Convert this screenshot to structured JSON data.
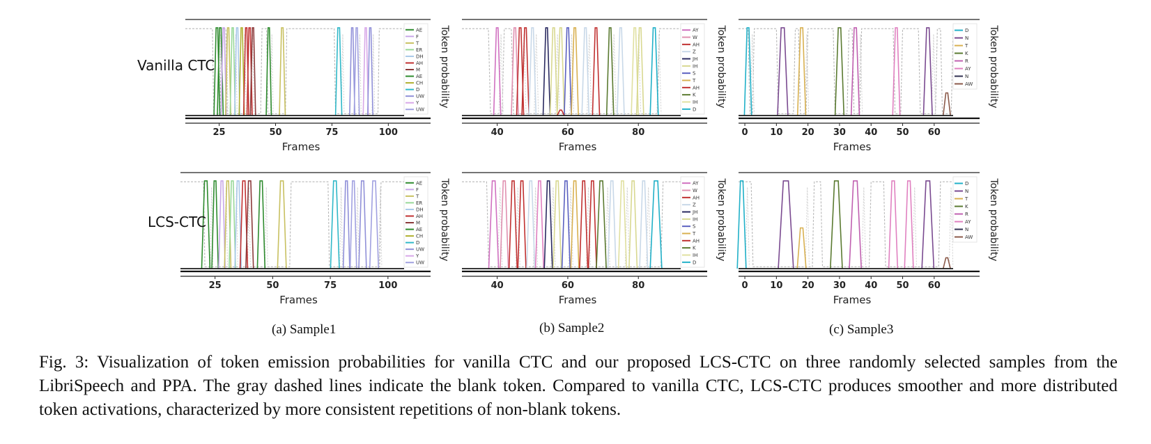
{
  "figure": {
    "row_labels": [
      "Vanilla CTC",
      "LCS-CTC"
    ],
    "subcaptions": [
      "(a) Sample1",
      "(b) Sample2",
      "(c) Sample3"
    ],
    "caption": "Fig. 3: Visualization of token emission probabilities for vanilla CTC and our proposed LCS-CTC on three randomly selected samples from the LibriSpeech and PPA. The gray dashed lines indicate the blank token. Compared to vanilla CTC, LCS-CTC produces smoother and more distributed token activations, characterized by more consistent repetitions of non-blank tokens."
  },
  "chart_data": [
    {
      "type": "line",
      "row": "Vanilla CTC",
      "sample": "Sample1",
      "xlabel": "Frames",
      "ylabel": "Token probability",
      "xlim": [
        10,
        107
      ],
      "ylim": [
        0,
        1
      ],
      "xticks": [
        25,
        50,
        75,
        100
      ],
      "legend_position": "right",
      "legend": [
        {
          "name": "AE",
          "color": "#2e8b2e"
        },
        {
          "name": "F",
          "color": "#c8a8e8"
        },
        {
          "name": "T",
          "color": "#c8c060"
        },
        {
          "name": "ER",
          "color": "#98d898"
        },
        {
          "name": "DH",
          "color": "#a8c8e8"
        },
        {
          "name": "AH",
          "color": "#c03030"
        },
        {
          "name": "M",
          "color": "#8b3a3a"
        },
        {
          "name": "AE",
          "color": "#2e8b2e"
        },
        {
          "name": "CH",
          "color": "#b0b030"
        },
        {
          "name": "D",
          "color": "#30b8c8"
        },
        {
          "name": "UW",
          "color": "#9090d8"
        },
        {
          "name": "Y",
          "color": "#d8a8e8"
        },
        {
          "name": "UW",
          "color": "#a0a0e0"
        }
      ],
      "blank_dips": [
        [
          22,
          26
        ],
        [
          28,
          44
        ],
        [
          46,
          55
        ],
        [
          76,
          96
        ]
      ],
      "peaks": [
        {
          "c": 24,
          "w": 1.8,
          "color": "#2e8b2e"
        },
        {
          "c": 25.5,
          "w": 1.8,
          "color": "#2e8b2e"
        },
        {
          "c": 27,
          "w": 1.5,
          "color": "#c8a8e8"
        },
        {
          "c": 29,
          "w": 1.5,
          "color": "#c8c060"
        },
        {
          "c": 31,
          "w": 1.5,
          "color": "#98d898"
        },
        {
          "c": 33,
          "w": 1.5,
          "color": "#a8c8e8"
        },
        {
          "c": 35,
          "w": 1.5,
          "color": "#b0b030"
        },
        {
          "c": 37,
          "w": 1.5,
          "color": "#c03030"
        },
        {
          "c": 38.5,
          "w": 1.5,
          "color": "#c03030"
        },
        {
          "c": 40,
          "w": 1.5,
          "color": "#8b3a3a"
        },
        {
          "c": 47,
          "w": 1.5,
          "color": "#2e8b2e"
        },
        {
          "c": 53,
          "w": 1.8,
          "color": "#c8c060"
        },
        {
          "c": 78,
          "w": 2,
          "color": "#30b8c8"
        },
        {
          "c": 84,
          "w": 1.5,
          "color": "#9090d8"
        },
        {
          "c": 86,
          "w": 1.5,
          "color": "#a0a0e0"
        },
        {
          "c": 90,
          "w": 1.5,
          "color": "#d8a8e8"
        },
        {
          "c": 92,
          "w": 1.5,
          "color": "#9090d8"
        }
      ]
    },
    {
      "type": "line",
      "row": "Vanilla CTC",
      "sample": "Sample2",
      "xlabel": "Frames",
      "ylabel": "Token probability",
      "xlim": [
        30,
        92
      ],
      "ylim": [
        0,
        1
      ],
      "xticks": [
        40,
        60,
        80
      ],
      "legend_position": "right",
      "legend": [
        {
          "name": "AY",
          "color": "#d070c0"
        },
        {
          "name": "W",
          "color": "#e090b0"
        },
        {
          "name": "AH",
          "color": "#c03030"
        },
        {
          "name": "Z",
          "color": "#c8d8e8"
        },
        {
          "name": "JH",
          "color": "#2a2a60"
        },
        {
          "name": "IH",
          "color": "#d8d890"
        },
        {
          "name": "S",
          "color": "#5a60c0"
        },
        {
          "name": "T",
          "color": "#d8b050"
        },
        {
          "name": "AH",
          "color": "#c03030"
        },
        {
          "name": "K",
          "color": "#5a7a30"
        },
        {
          "name": "IH",
          "color": "#e0e0a0"
        },
        {
          "name": "D",
          "color": "#20b0c8"
        }
      ],
      "blank_dips": [
        [
          37.5,
          42
        ],
        [
          44,
          86
        ]
      ],
      "peaks": [
        {
          "c": 40,
          "w": 1.2,
          "color": "#d070c0"
        },
        {
          "c": 45,
          "w": 1.2,
          "color": "#e090b0"
        },
        {
          "c": 46.5,
          "w": 1.2,
          "color": "#c03030"
        },
        {
          "c": 48,
          "w": 1.2,
          "color": "#c03030"
        },
        {
          "c": 50,
          "w": 1.2,
          "color": "#c8d8e8"
        },
        {
          "c": 54,
          "w": 1.2,
          "color": "#2a2a60"
        },
        {
          "c": 56,
          "w": 1.2,
          "color": "#d8d890"
        },
        {
          "c": 58,
          "w": 1.2,
          "color": "#d8d890"
        },
        {
          "c": 60,
          "w": 1.2,
          "color": "#5a60c0"
        },
        {
          "c": 62,
          "w": 1.2,
          "color": "#d8b050"
        },
        {
          "c": 65,
          "w": 1.2,
          "color": "#c8d8e8"
        },
        {
          "c": 68,
          "w": 1.2,
          "color": "#c03030"
        },
        {
          "c": 72,
          "w": 1.2,
          "color": "#5a7a30"
        },
        {
          "c": 75,
          "w": 1.2,
          "color": "#c8d8e8"
        },
        {
          "c": 79,
          "w": 1.2,
          "color": "#e0e0a0"
        },
        {
          "c": 80.5,
          "w": 1.2,
          "color": "#d8d890"
        },
        {
          "c": 84.5,
          "w": 1.5,
          "color": "#20b0c8"
        },
        {
          "c": 58,
          "w": 1.2,
          "h": 0.06,
          "color": "#c03030"
        }
      ]
    },
    {
      "type": "line",
      "row": "Vanilla CTC",
      "sample": "Sample3",
      "xlabel": "Frames",
      "ylabel": "Token probability",
      "xlim": [
        -2,
        66
      ],
      "ylim": [
        0,
        1
      ],
      "xticks": [
        0,
        10,
        20,
        30,
        40,
        50,
        60
      ],
      "legend_position": "right",
      "legend": [
        {
          "name": "D",
          "color": "#20b0c8"
        },
        {
          "name": "N",
          "color": "#7a4a90"
        },
        {
          "name": "T",
          "color": "#d8b050"
        },
        {
          "name": "K",
          "color": "#5a7a30"
        },
        {
          "name": "R",
          "color": "#c060b0"
        },
        {
          "name": "AY",
          "color": "#e080c0"
        },
        {
          "name": "N",
          "color": "#303050"
        },
        {
          "name": "AW",
          "color": "#8b5a4a"
        }
      ],
      "blank_dips": [
        [
          1,
          3
        ],
        [
          10,
          16
        ],
        [
          17,
          20
        ],
        [
          28,
          33
        ],
        [
          34,
          37
        ],
        [
          47,
          50
        ],
        [
          55,
          61
        ],
        [
          62,
          66
        ]
      ],
      "peaks": [
        {
          "c": 1,
          "w": 1.5,
          "color": "#20b0c8"
        },
        {
          "c": 12,
          "w": 2.5,
          "color": "#7a4a90"
        },
        {
          "c": 18,
          "w": 1.8,
          "color": "#d8b050"
        },
        {
          "c": 30,
          "w": 2,
          "color": "#5a7a30"
        },
        {
          "c": 35,
          "w": 1.8,
          "color": "#c060b0"
        },
        {
          "c": 48,
          "w": 1.5,
          "color": "#e080c0"
        },
        {
          "c": 58,
          "w": 2,
          "color": "#7a4a90"
        },
        {
          "c": 64,
          "w": 1.5,
          "h": 0.25,
          "color": "#8b5a4a"
        }
      ]
    },
    {
      "type": "line",
      "row": "LCS-CTC",
      "sample": "Sample1",
      "xlabel": "Frames",
      "ylabel": "Token probability",
      "xlim": [
        10,
        107
      ],
      "ylim": [
        0,
        1
      ],
      "xticks": [
        25,
        50,
        75,
        100
      ],
      "legend_position": "right",
      "legend": [
        {
          "name": "AE",
          "color": "#2e8b2e"
        },
        {
          "name": "F",
          "color": "#c8a8e8"
        },
        {
          "name": "T",
          "color": "#c8c060"
        },
        {
          "name": "ER",
          "color": "#98d898"
        },
        {
          "name": "DH",
          "color": "#a8c8e8"
        },
        {
          "name": "AH",
          "color": "#c03030"
        },
        {
          "name": "M",
          "color": "#8b3a3a"
        },
        {
          "name": "AE",
          "color": "#2e8b2e"
        },
        {
          "name": "CH",
          "color": "#b0b030"
        },
        {
          "name": "D",
          "color": "#30b8c8"
        },
        {
          "name": "UW",
          "color": "#9090d8"
        },
        {
          "name": "Y",
          "color": "#d8a8e8"
        },
        {
          "name": "UW",
          "color": "#a0a0e0"
        }
      ],
      "blank_dips": [
        [
          20,
          58
        ],
        [
          74,
          97
        ]
      ],
      "peaks": [
        {
          "c": 21,
          "w": 2.8,
          "color": "#2e8b2e"
        },
        {
          "c": 25,
          "w": 2,
          "color": "#2e8b2e"
        },
        {
          "c": 28,
          "w": 2,
          "color": "#c8a8e8"
        },
        {
          "c": 30.5,
          "w": 2,
          "color": "#c8c060"
        },
        {
          "c": 32.5,
          "w": 2,
          "color": "#98d898"
        },
        {
          "c": 35,
          "w": 2,
          "color": "#a8c8e8"
        },
        {
          "c": 37.5,
          "w": 2.5,
          "color": "#c03030"
        },
        {
          "c": 40,
          "w": 2.5,
          "color": "#8b3a3a"
        },
        {
          "c": 45,
          "w": 2.5,
          "color": "#2e8b2e"
        },
        {
          "c": 54,
          "w": 3,
          "color": "#c8c060"
        },
        {
          "c": 77,
          "w": 3,
          "color": "#30b8c8"
        },
        {
          "c": 82,
          "w": 2,
          "color": "#9090d8"
        },
        {
          "c": 85,
          "w": 2,
          "color": "#a0a0e0"
        },
        {
          "c": 89,
          "w": 2.5,
          "color": "#9090d8"
        },
        {
          "c": 94,
          "w": 3,
          "color": "#a0a0e0"
        }
      ]
    },
    {
      "type": "line",
      "row": "LCS-CTC",
      "sample": "Sample2",
      "xlabel": "Frames",
      "ylabel": "Token probability",
      "xlim": [
        30,
        92
      ],
      "ylim": [
        0,
        1
      ],
      "xticks": [
        40,
        60,
        80
      ],
      "legend_position": "right",
      "legend": [
        {
          "name": "AY",
          "color": "#d070c0"
        },
        {
          "name": "W",
          "color": "#e090b0"
        },
        {
          "name": "AH",
          "color": "#c03030"
        },
        {
          "name": "Z",
          "color": "#c8d8e8"
        },
        {
          "name": "JH",
          "color": "#2a2a60"
        },
        {
          "name": "IH",
          "color": "#d8d890"
        },
        {
          "name": "S",
          "color": "#5a60c0"
        },
        {
          "name": "T",
          "color": "#d8b050"
        },
        {
          "name": "AH",
          "color": "#c03030"
        },
        {
          "name": "K",
          "color": "#5a7a30"
        },
        {
          "name": "IH",
          "color": "#e0e0a0"
        },
        {
          "name": "D",
          "color": "#20b0c8"
        }
      ],
      "blank_dips": [
        [
          37,
          87
        ]
      ],
      "peaks": [
        {
          "c": 39,
          "w": 2,
          "color": "#d070c0"
        },
        {
          "c": 42,
          "w": 1.5,
          "color": "#e090b0"
        },
        {
          "c": 44.5,
          "w": 1.5,
          "color": "#c03030"
        },
        {
          "c": 47,
          "w": 1.5,
          "color": "#c03030"
        },
        {
          "c": 49.5,
          "w": 1.5,
          "color": "#c8d8e8"
        },
        {
          "c": 52,
          "w": 1.5,
          "color": "#e080c0"
        },
        {
          "c": 54.5,
          "w": 1.5,
          "color": "#2a2a60"
        },
        {
          "c": 57,
          "w": 1.5,
          "color": "#d8d890"
        },
        {
          "c": 59.5,
          "w": 1.5,
          "color": "#5a60c0"
        },
        {
          "c": 62,
          "w": 1.5,
          "color": "#d8b050"
        },
        {
          "c": 64.5,
          "w": 1.5,
          "color": "#c03030"
        },
        {
          "c": 67,
          "w": 1.5,
          "color": "#c03030"
        },
        {
          "c": 69.5,
          "w": 2,
          "color": "#5a7a30"
        },
        {
          "c": 72.5,
          "w": 1.5,
          "color": "#c8d8e8"
        },
        {
          "c": 75.5,
          "w": 1.5,
          "color": "#e0e0a0"
        },
        {
          "c": 78.5,
          "w": 1.5,
          "color": "#d8d890"
        },
        {
          "c": 81.5,
          "w": 1.5,
          "color": "#c8d8e8"
        },
        {
          "c": 85,
          "w": 2.5,
          "color": "#20b0c8"
        }
      ]
    },
    {
      "type": "line",
      "row": "LCS-CTC",
      "sample": "Sample3",
      "xlabel": "Frames",
      "ylabel": "Token probability",
      "xlim": [
        -2,
        66
      ],
      "ylim": [
        0,
        1
      ],
      "xticks": [
        0,
        10,
        20,
        30,
        40,
        50,
        60
      ],
      "legend_position": "right",
      "legend": [
        {
          "name": "D",
          "color": "#20b0c8"
        },
        {
          "name": "N",
          "color": "#7a4a90"
        },
        {
          "name": "T",
          "color": "#d8b050"
        },
        {
          "name": "K",
          "color": "#5a7a30"
        },
        {
          "name": "R",
          "color": "#c060b0"
        },
        {
          "name": "AY",
          "color": "#e080c0"
        },
        {
          "name": "N",
          "color": "#303050"
        },
        {
          "name": "AW",
          "color": "#8b5a4a"
        }
      ],
      "blank_dips": [
        [
          2,
          22
        ],
        [
          24,
          40
        ],
        [
          44,
          62
        ]
      ],
      "peaks": [
        {
          "c": -1,
          "w": 2,
          "color": "#20b0c8"
        },
        {
          "c": 13,
          "w": 4,
          "color": "#7a4a90"
        },
        {
          "c": 18,
          "w": 2,
          "h": 0.45,
          "color": "#d8b050"
        },
        {
          "c": 29,
          "w": 3,
          "color": "#5a7a30"
        },
        {
          "c": 35,
          "w": 3,
          "color": "#c060b0"
        },
        {
          "c": 47,
          "w": 2,
          "color": "#e080c0"
        },
        {
          "c": 52,
          "w": 2,
          "color": "#e080c0"
        },
        {
          "c": 58,
          "w": 3,
          "color": "#7a4a90"
        },
        {
          "c": 64,
          "w": 1.5,
          "h": 0.12,
          "color": "#8b5a4a"
        }
      ]
    }
  ]
}
